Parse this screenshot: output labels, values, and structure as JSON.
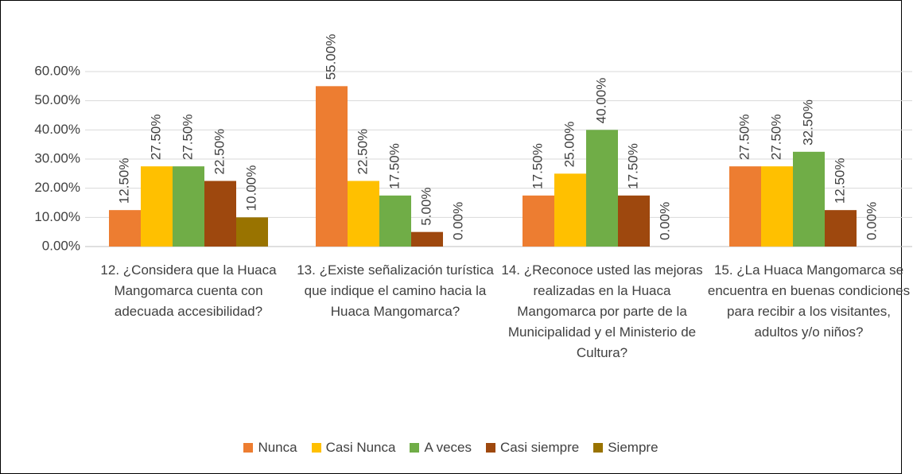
{
  "chart_data": {
    "type": "bar",
    "categories": [
      "12. ¿Considera que la Huaca Mangomarca cuenta con adecuada accesibilidad?",
      "13. ¿Existe señalización turística que indique el camino hacia la Huaca Mangomarca?",
      "14. ¿Reconoce usted las mejoras realizadas en la Huaca Mangomarca por parte de la Municipalidad y el Ministerio de Cultura?",
      "15. ¿La Huaca Mangomarca se encuentra en buenas condiciones para recibir a los visitantes, adultos y/o niños?"
    ],
    "series": [
      {
        "name": "Nunca",
        "color": "#ed7d31",
        "values": [
          12.5,
          55,
          17.5,
          27.5
        ],
        "value_labels": [
          "12.50%",
          "55.00%",
          "17.50%",
          "27.50%"
        ]
      },
      {
        "name": "Casi Nunca",
        "color": "#ffc000",
        "values": [
          27.5,
          22.5,
          25,
          27.5
        ],
        "value_labels": [
          "27.50%",
          "22.50%",
          "25.00%",
          "27.50%"
        ]
      },
      {
        "name": "A veces",
        "color": "#70ad47",
        "values": [
          27.5,
          17.5,
          40,
          32.5
        ],
        "value_labels": [
          "27.50%",
          "17.50%",
          "40.00%",
          "32.50%"
        ]
      },
      {
        "name": "Casi siempre",
        "color": "#9e480e",
        "values": [
          22.5,
          5,
          17.5,
          12.5
        ],
        "value_labels": [
          "22.50%",
          "5.00%",
          "17.50%",
          "12.50%"
        ]
      },
      {
        "name": "Siempre",
        "color": "#997300",
        "values": [
          10,
          0,
          0,
          0
        ],
        "value_labels": [
          "10.00%",
          "0.00%",
          "0.00%",
          "0.00%"
        ]
      }
    ],
    "ylim": [
      0,
      60
    ],
    "yticks": [
      {
        "value": 0,
        "label": "0.00%"
      },
      {
        "value": 10,
        "label": "10.00%"
      },
      {
        "value": 20,
        "label": "20.00%"
      },
      {
        "value": 30,
        "label": "30.00%"
      },
      {
        "value": 40,
        "label": "40.00%"
      },
      {
        "value": 50,
        "label": "50.00%"
      },
      {
        "value": 60,
        "label": "60.00%"
      }
    ],
    "grid": true,
    "legend": "bottom"
  }
}
